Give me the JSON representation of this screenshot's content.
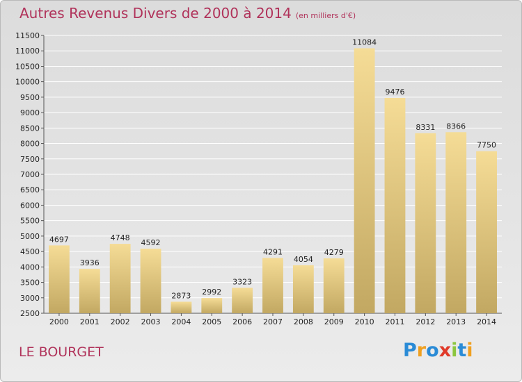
{
  "title": "Autres Revenus Divers de 2000 à 2014",
  "subtitle": "(en milliers d'€)",
  "commune": "LE BOURGET",
  "logo": {
    "letters": [
      "P",
      "r",
      "o",
      "x",
      "i",
      "t",
      "i"
    ],
    "colors": [
      "#2a8bd6",
      "#f0a020",
      "#2a8bd6",
      "#e03a2a",
      "#8cc63f",
      "#2a8bd6",
      "#f0a020"
    ]
  },
  "colors": {
    "accent": "#b0325a",
    "bar_top": "#f5dc96",
    "bar_bottom": "#c2a862",
    "grid": "#ffffff"
  },
  "chart_data": {
    "type": "bar",
    "categories": [
      "2000",
      "2001",
      "2002",
      "2003",
      "2004",
      "2005",
      "2006",
      "2007",
      "2008",
      "2009",
      "2010",
      "2011",
      "2012",
      "2013",
      "2014"
    ],
    "values": [
      4697,
      3936,
      4748,
      4592,
      2873,
      2992,
      3323,
      4291,
      4054,
      4279,
      11084,
      9476,
      8331,
      8366,
      7750
    ],
    "value_labels": [
      "4697",
      "3936",
      "4748",
      "4592",
      "2873",
      "2992",
      "3323",
      "4291",
      "4054",
      "4279",
      "11084",
      "9476",
      "8331",
      "8366",
      "7750"
    ],
    "ylim": [
      2500,
      11500
    ],
    "yticks": [
      2500,
      3000,
      3500,
      4000,
      4500,
      5000,
      5500,
      6000,
      6500,
      7000,
      7500,
      8000,
      8500,
      9000,
      9500,
      10000,
      10500,
      11000,
      11500
    ],
    "ytick_labels": [
      "2500",
      "3000",
      "3500",
      "4000",
      "4500",
      "5000",
      "5500",
      "6000",
      "6500",
      "7000",
      "7500",
      "8000",
      "8500",
      "9000",
      "9500",
      "10000",
      "10500",
      "11000",
      "11500"
    ],
    "grid": true,
    "legend": "none"
  }
}
